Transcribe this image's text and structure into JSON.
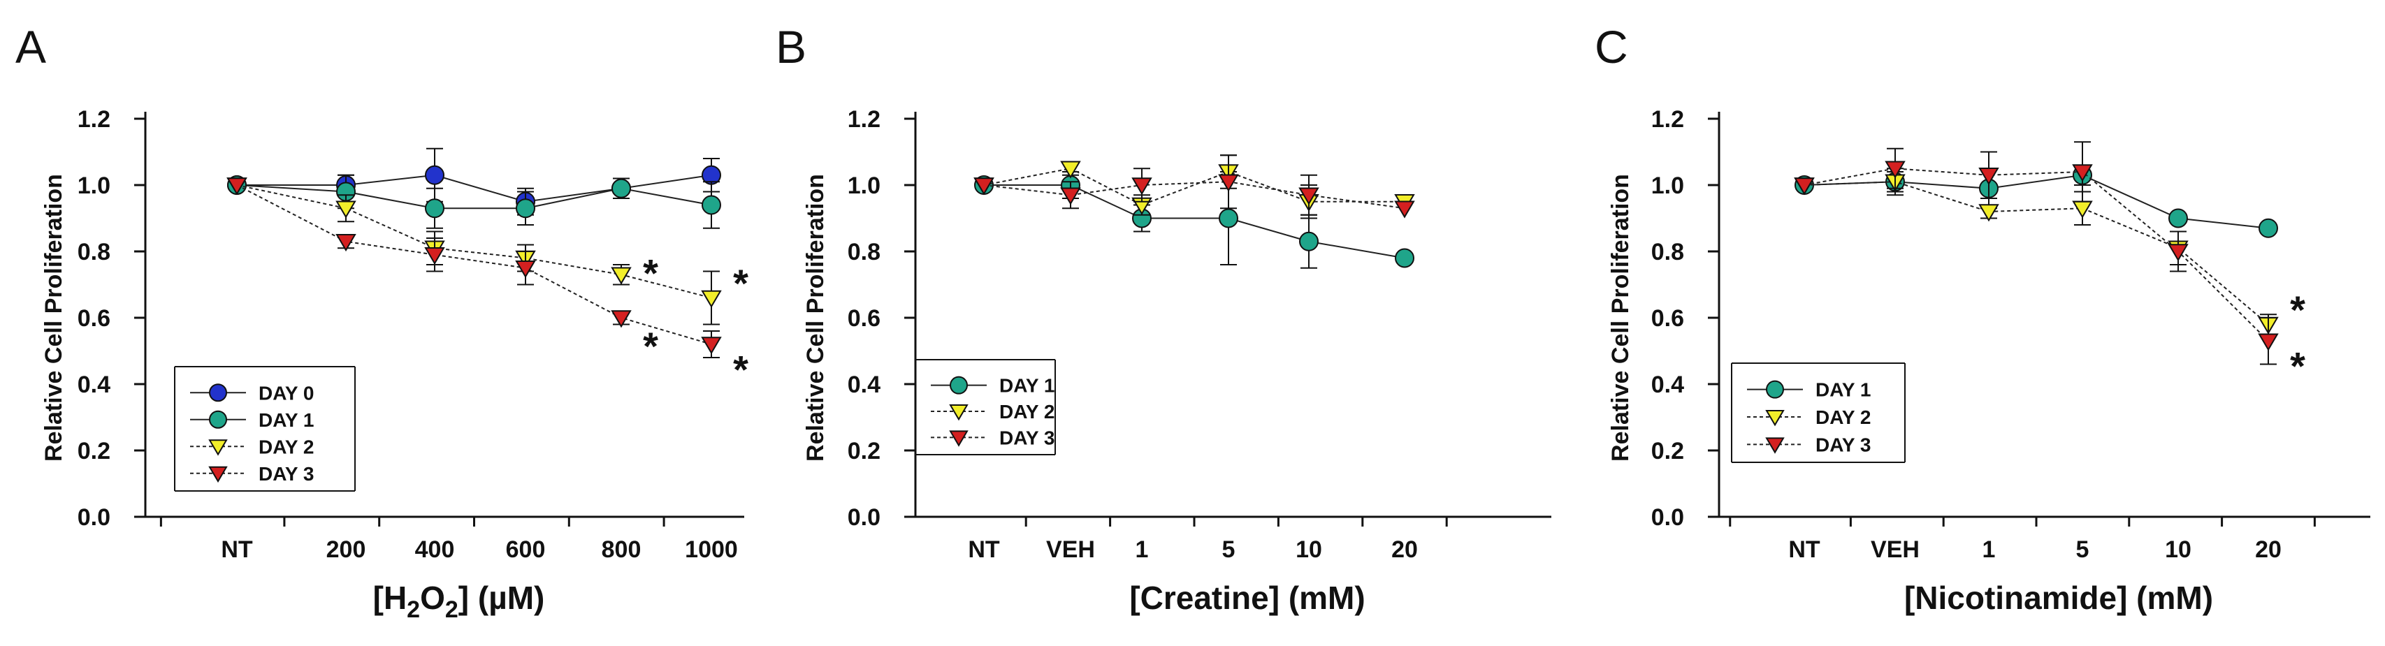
{
  "chart_data": [
    {
      "type": "line",
      "panel": "A",
      "title": "",
      "ylabel": "Relative Cell Proliferation",
      "xlabel_parts": [
        "[H",
        "2",
        "O",
        "2",
        "] (µM)"
      ],
      "xlabel": "[H2O2] (µM)",
      "categories": [
        "NT",
        "200",
        "400",
        "600",
        "800",
        "1000"
      ],
      "ylim": [
        0,
        1.2
      ],
      "yticks": [
        "0.0",
        "0.2",
        "0.4",
        "0.6",
        "0.8",
        "1.0",
        "1.2"
      ],
      "legend_position": "bottom-left",
      "series": [
        {
          "name": "DAY 0",
          "marker": "circle",
          "color": "#2233cc",
          "line": "solid",
          "values": [
            1.0,
            1.0,
            1.03,
            0.95,
            0.99,
            1.03
          ],
          "errors": [
            0.0,
            0.03,
            0.08,
            0.04,
            0.03,
            0.05
          ]
        },
        {
          "name": "DAY 1",
          "marker": "circle",
          "color": "#1fa58a",
          "line": "solid",
          "values": [
            1.0,
            0.98,
            0.93,
            0.93,
            0.99,
            0.94
          ],
          "errors": [
            0.0,
            0.05,
            0.06,
            0.05,
            0.03,
            0.07
          ]
        },
        {
          "name": "DAY 2",
          "marker": "triangle-down",
          "color": "#f2ee2a",
          "line": "dotted",
          "values": [
            1.0,
            0.93,
            0.81,
            0.78,
            0.73,
            0.66
          ],
          "errors": [
            0.0,
            0.04,
            0.05,
            0.04,
            0.03,
            0.08
          ]
        },
        {
          "name": "DAY 3",
          "marker": "triangle-down",
          "color": "#d42020",
          "line": "dotted",
          "values": [
            1.0,
            0.83,
            0.79,
            0.75,
            0.6,
            0.52
          ],
          "errors": [
            0.0,
            0.02,
            0.05,
            0.05,
            0.02,
            0.04
          ]
        }
      ],
      "annotations": [
        {
          "text": "*",
          "category": "800",
          "y": 0.74
        },
        {
          "text": "*",
          "category": "800",
          "y": 0.52
        },
        {
          "text": "*",
          "category": "1000",
          "y": 0.71
        },
        {
          "text": "*",
          "category": "1000",
          "y": 0.45
        }
      ]
    },
    {
      "type": "line",
      "panel": "B",
      "title": "",
      "ylabel": "Relative Cell Proliferation",
      "xlabel": "[Creatine] (mM)",
      "categories": [
        "NT",
        "VEH",
        "1",
        "5",
        "10",
        "20"
      ],
      "ylim": [
        0,
        1.2
      ],
      "yticks": [
        "0.0",
        "0.2",
        "0.4",
        "0.6",
        "0.8",
        "1.0",
        "1.2"
      ],
      "legend_position": "bottom-left",
      "series": [
        {
          "name": "DAY 1",
          "marker": "circle",
          "color": "#1fa58a",
          "line": "solid",
          "values": [
            1.0,
            1.0,
            0.9,
            0.9,
            0.83,
            0.78
          ],
          "errors": [
            0.0,
            0.04,
            0.04,
            0.14,
            0.08,
            0.0
          ]
        },
        {
          "name": "DAY 2",
          "marker": "triangle-down",
          "color": "#f2ee2a",
          "line": "dotted",
          "values": [
            1.0,
            1.05,
            0.94,
            1.04,
            0.95,
            0.95
          ],
          "errors": [
            0.0,
            0.02,
            0.03,
            0.05,
            0.05,
            0.0
          ]
        },
        {
          "name": "DAY 3",
          "marker": "triangle-down",
          "color": "#d42020",
          "line": "dotted",
          "values": [
            1.0,
            0.97,
            1.0,
            1.01,
            0.97,
            0.93
          ],
          "errors": [
            0.0,
            0.04,
            0.05,
            0.08,
            0.06,
            0.0
          ]
        }
      ],
      "annotations": []
    },
    {
      "type": "line",
      "panel": "C",
      "title": "",
      "ylabel": "Relative Cell Proliferation",
      "xlabel": "[Nicotinamide] (mM)",
      "categories": [
        "NT",
        "VEH",
        "1",
        "5",
        "10",
        "20"
      ],
      "ylim": [
        0,
        1.2
      ],
      "yticks": [
        "0.0",
        "0.2",
        "0.4",
        "0.6",
        "0.8",
        "1.0",
        "1.2"
      ],
      "legend_position": "bottom-left",
      "series": [
        {
          "name": "DAY 1",
          "marker": "circle",
          "color": "#1fa58a",
          "line": "solid",
          "values": [
            1.0,
            1.01,
            0.99,
            1.03,
            0.9,
            0.87
          ],
          "errors": [
            0.0,
            0.03,
            0.06,
            0.03,
            0.0,
            0.0
          ]
        },
        {
          "name": "DAY 2",
          "marker": "triangle-down",
          "color": "#f2ee2a",
          "line": "dotted",
          "values": [
            1.0,
            1.01,
            0.92,
            0.93,
            0.81,
            0.58
          ],
          "errors": [
            0.0,
            0.04,
            0.02,
            0.05,
            0.05,
            0.03
          ]
        },
        {
          "name": "DAY 3",
          "marker": "triangle-down",
          "color": "#d42020",
          "line": "dotted",
          "values": [
            1.0,
            1.05,
            1.03,
            1.04,
            0.8,
            0.53
          ],
          "errors": [
            0.0,
            0.06,
            0.07,
            0.09,
            0.06,
            0.07
          ]
        }
      ],
      "annotations": [
        {
          "text": "*",
          "category": "20",
          "y": 0.63
        },
        {
          "text": "*",
          "category": "20",
          "y": 0.46
        }
      ]
    }
  ]
}
